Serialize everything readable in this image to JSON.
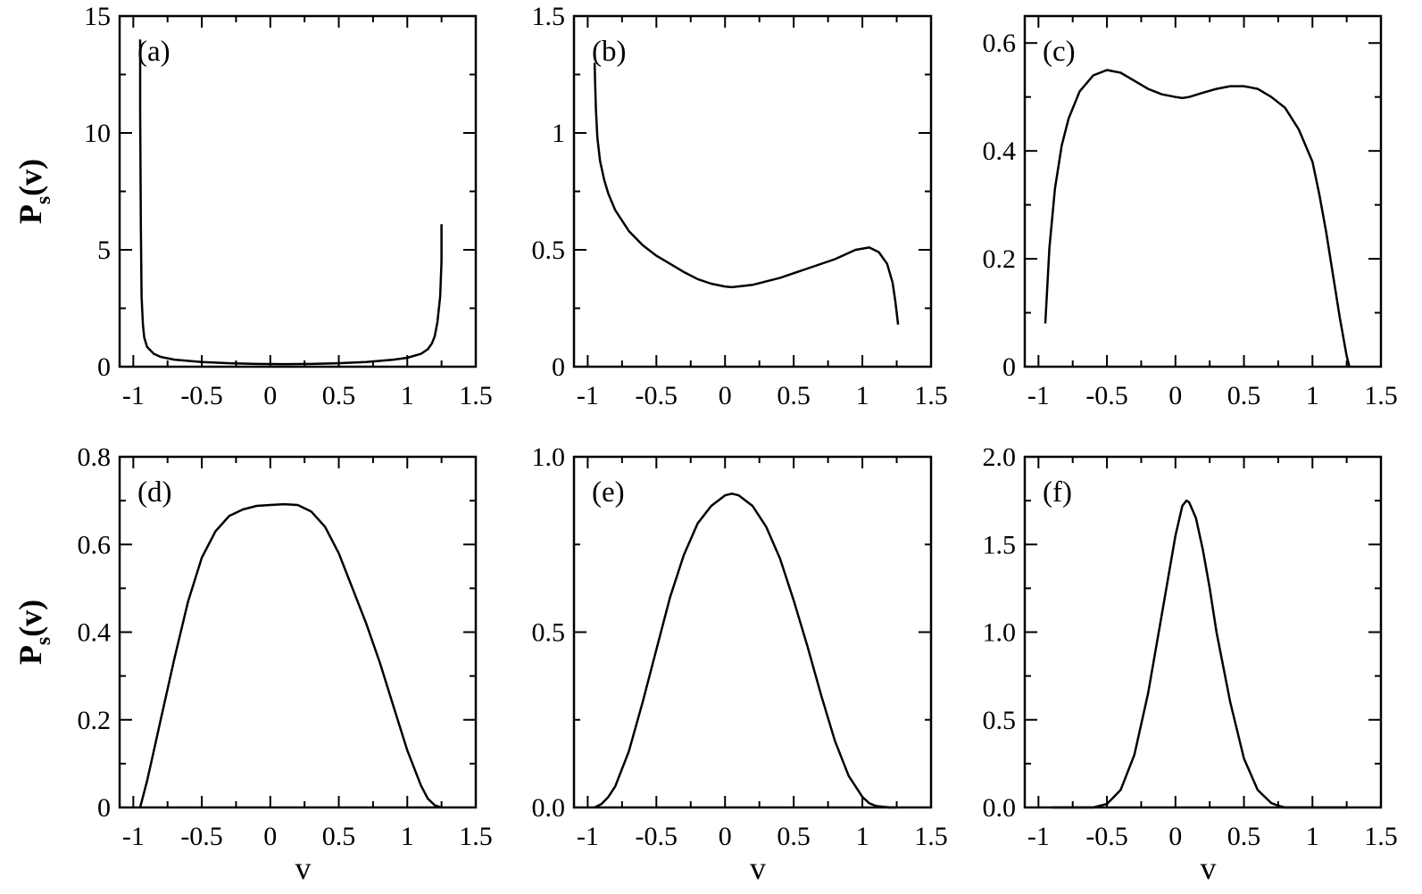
{
  "chart_data": [
    {
      "type": "line",
      "panel": "(a)",
      "xlim": [
        -1.1,
        1.5
      ],
      "ylim": [
        0,
        15
      ],
      "xticks": [
        "-1",
        "-0.5",
        "0",
        "0.5",
        "1",
        "1.5"
      ],
      "yticks": [
        "0",
        "5",
        "10",
        "15"
      ],
      "ytick_values": [
        0,
        5,
        10,
        15
      ],
      "xlabel": "",
      "ylabel": "P_s(v)",
      "series": [
        {
          "x": [
            -0.95,
            -0.95,
            -0.945,
            -0.94,
            -0.93,
            -0.92,
            -0.9,
            -0.85,
            -0.8,
            -0.7,
            -0.5,
            -0.3,
            -0.1,
            0.1,
            0.3,
            0.5,
            0.7,
            0.9,
            1.0,
            1.1,
            1.15,
            1.18,
            1.2,
            1.22,
            1.24,
            1.25,
            1.25
          ],
          "y": [
            14.0,
            11.0,
            6.0,
            3.0,
            1.8,
            1.25,
            0.85,
            0.55,
            0.42,
            0.3,
            0.2,
            0.15,
            0.12,
            0.11,
            0.12,
            0.15,
            0.2,
            0.3,
            0.38,
            0.55,
            0.75,
            1.0,
            1.3,
            1.9,
            3.0,
            4.5,
            6.1
          ]
        }
      ]
    },
    {
      "type": "line",
      "panel": "(b)",
      "xlim": [
        -1.1,
        1.5
      ],
      "ylim": [
        0,
        1.5
      ],
      "xticks": [
        "-1",
        "-0.5",
        "0",
        "0.5",
        "1",
        "1.5"
      ],
      "yticks": [
        "0",
        "0.5",
        "1",
        "1.5"
      ],
      "ytick_values": [
        0,
        0.5,
        1,
        1.5
      ],
      "xlabel": "",
      "ylabel": "",
      "series": [
        {
          "x": [
            -0.95,
            -0.945,
            -0.94,
            -0.93,
            -0.91,
            -0.88,
            -0.85,
            -0.8,
            -0.7,
            -0.6,
            -0.5,
            -0.4,
            -0.3,
            -0.2,
            -0.1,
            0.0,
            0.05,
            0.2,
            0.4,
            0.6,
            0.8,
            0.95,
            1.05,
            1.12,
            1.18,
            1.22,
            1.24,
            1.26
          ],
          "y": [
            1.3,
            1.2,
            1.1,
            0.98,
            0.88,
            0.8,
            0.74,
            0.67,
            0.58,
            0.52,
            0.475,
            0.44,
            0.405,
            0.375,
            0.355,
            0.343,
            0.34,
            0.35,
            0.38,
            0.42,
            0.46,
            0.5,
            0.51,
            0.49,
            0.44,
            0.36,
            0.28,
            0.18
          ]
        }
      ]
    },
    {
      "type": "line",
      "panel": "(c)",
      "xlim": [
        -1.1,
        1.5
      ],
      "ylim": [
        0,
        0.65
      ],
      "xticks": [
        "-1",
        "-0.5",
        "0",
        "0.5",
        "1",
        "1.5"
      ],
      "yticks": [
        "0",
        "0.2",
        "0.4",
        "0.6"
      ],
      "ytick_values": [
        0,
        0.2,
        0.4,
        0.6
      ],
      "xlabel": "",
      "ylabel": "",
      "series": [
        {
          "x": [
            -0.95,
            -0.92,
            -0.88,
            -0.83,
            -0.78,
            -0.7,
            -0.6,
            -0.5,
            -0.4,
            -0.3,
            -0.2,
            -0.1,
            0.0,
            0.05,
            0.1,
            0.2,
            0.3,
            0.4,
            0.5,
            0.6,
            0.7,
            0.8,
            0.9,
            1.0,
            1.05,
            1.1,
            1.15,
            1.2,
            1.25,
            1.27
          ],
          "y": [
            0.08,
            0.22,
            0.33,
            0.41,
            0.46,
            0.51,
            0.54,
            0.55,
            0.545,
            0.53,
            0.515,
            0.505,
            0.5,
            0.498,
            0.5,
            0.508,
            0.515,
            0.52,
            0.52,
            0.515,
            0.5,
            0.48,
            0.44,
            0.38,
            0.32,
            0.25,
            0.17,
            0.09,
            0.02,
            0.0
          ]
        }
      ]
    },
    {
      "type": "line",
      "panel": "(d)",
      "xlim": [
        -1.1,
        1.5
      ],
      "ylim": [
        0,
        0.8
      ],
      "xticks": [
        "-1",
        "-0.5",
        "0",
        "0.5",
        "1",
        "1.5"
      ],
      "yticks": [
        "0",
        "0.2",
        "0.4",
        "0.6",
        "0.8"
      ],
      "ytick_values": [
        0,
        0.2,
        0.4,
        0.6,
        0.8
      ],
      "xlabel": "v",
      "ylabel": "P_s(v)",
      "series": [
        {
          "x": [
            -0.95,
            -0.9,
            -0.85,
            -0.8,
            -0.7,
            -0.6,
            -0.5,
            -0.4,
            -0.3,
            -0.2,
            -0.1,
            0.0,
            0.1,
            0.2,
            0.3,
            0.4,
            0.5,
            0.6,
            0.7,
            0.8,
            0.9,
            1.0,
            1.1,
            1.15,
            1.2,
            1.25
          ],
          "y": [
            0.0,
            0.06,
            0.13,
            0.2,
            0.34,
            0.47,
            0.57,
            0.63,
            0.665,
            0.68,
            0.688,
            0.69,
            0.692,
            0.69,
            0.675,
            0.64,
            0.58,
            0.5,
            0.42,
            0.33,
            0.23,
            0.13,
            0.05,
            0.02,
            0.005,
            0.0
          ]
        }
      ]
    },
    {
      "type": "line",
      "panel": "(e)",
      "xlim": [
        -1.1,
        1.5
      ],
      "ylim": [
        0,
        1.0
      ],
      "xticks": [
        "-1",
        "-0.5",
        "0",
        "0.5",
        "1",
        "1.5"
      ],
      "yticks": [
        "0.0",
        "0.5",
        "1.0"
      ],
      "ytick_values": [
        0,
        0.5,
        1.0
      ],
      "xlabel": "v",
      "ylabel": "",
      "series": [
        {
          "x": [
            -0.95,
            -0.9,
            -0.85,
            -0.8,
            -0.7,
            -0.6,
            -0.5,
            -0.4,
            -0.3,
            -0.2,
            -0.1,
            0.0,
            0.05,
            0.1,
            0.2,
            0.3,
            0.4,
            0.5,
            0.6,
            0.7,
            0.8,
            0.9,
            1.0,
            1.05,
            1.1,
            1.2,
            1.25
          ],
          "y": [
            0.0,
            0.01,
            0.03,
            0.06,
            0.16,
            0.3,
            0.45,
            0.6,
            0.72,
            0.81,
            0.86,
            0.89,
            0.895,
            0.89,
            0.86,
            0.8,
            0.71,
            0.59,
            0.46,
            0.32,
            0.19,
            0.09,
            0.03,
            0.012,
            0.004,
            0.0,
            0.0
          ]
        }
      ]
    },
    {
      "type": "line",
      "panel": "(f)",
      "xlim": [
        -1.1,
        1.5
      ],
      "ylim": [
        0,
        2.0
      ],
      "xticks": [
        "-1",
        "-0.5",
        "0",
        "0.5",
        "1",
        "1.5"
      ],
      "yticks": [
        "0.0",
        "0.5",
        "1.0",
        "1.5",
        "2.0"
      ],
      "ytick_values": [
        0,
        0.5,
        1.0,
        1.5,
        2.0
      ],
      "xlabel": "v",
      "ylabel": "",
      "series": [
        {
          "x": [
            -0.9,
            -0.6,
            -0.5,
            -0.4,
            -0.3,
            -0.2,
            -0.1,
            0.0,
            0.05,
            0.08,
            0.1,
            0.15,
            0.2,
            0.25,
            0.3,
            0.4,
            0.5,
            0.6,
            0.7,
            0.75,
            0.8,
            1.0,
            1.25
          ],
          "y": [
            0.0,
            0.0,
            0.02,
            0.1,
            0.3,
            0.65,
            1.1,
            1.55,
            1.72,
            1.75,
            1.74,
            1.65,
            1.47,
            1.25,
            1.0,
            0.6,
            0.28,
            0.1,
            0.025,
            0.01,
            0.0,
            0.0,
            0.0
          ]
        }
      ]
    }
  ]
}
